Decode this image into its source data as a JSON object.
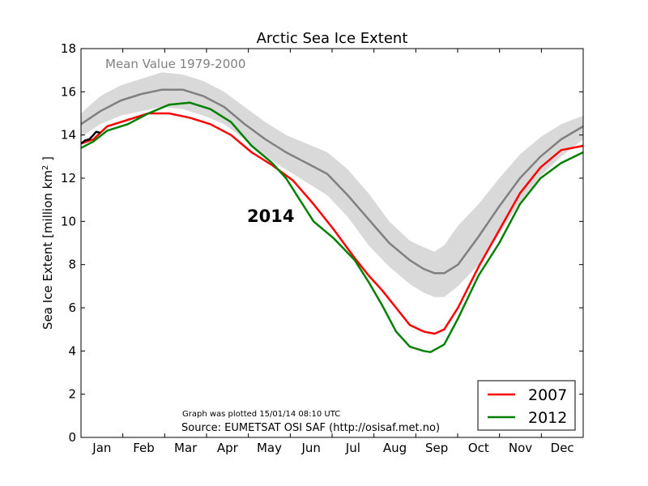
{
  "chart_data": {
    "type": "line",
    "title": "Arctic Sea Ice Extent",
    "ylabel": "Sea Ice Extent [million km",
    "ylabel_sup": "2",
    "ylabel_end": " ]",
    "xlabel": "",
    "ylim": [
      0,
      18
    ],
    "xlim": [
      1,
      366
    ],
    "grid": false,
    "legend_position": "lower right",
    "months": [
      "Jan",
      "Feb",
      "Mar",
      "Apr",
      "May",
      "Jun",
      "Jul",
      "Aug",
      "Sep",
      "Oct",
      "Nov",
      "Dec"
    ],
    "yticks": [
      "0",
      "2",
      "4",
      "6",
      "8",
      "10",
      "12",
      "14",
      "16",
      "18"
    ],
    "mean_label": "Mean Value 1979-2000",
    "year_label": "2014",
    "plotted_note": "Graph was plotted 15/01/14 08:10 UTC",
    "source_note": "Source: EUMETSAT OSI SAF (http://osisaf.met.no)",
    "mean": {
      "color": "#808080",
      "x": [
        1,
        15,
        30,
        45,
        60,
        75,
        90,
        105,
        120,
        135,
        150,
        165,
        180,
        195,
        210,
        225,
        240,
        250,
        258,
        265,
        275,
        290,
        305,
        320,
        335,
        350,
        366
      ],
      "y": [
        14.5,
        15.1,
        15.6,
        15.9,
        16.1,
        16.1,
        15.8,
        15.3,
        14.5,
        13.8,
        13.2,
        12.7,
        12.2,
        11.2,
        10.1,
        9.0,
        8.2,
        7.8,
        7.6,
        7.6,
        8.0,
        9.3,
        10.7,
        12.0,
        13.0,
        13.8,
        14.4
      ]
    },
    "band": {
      "color": "#d9d9d9",
      "x": [
        1,
        15,
        30,
        45,
        60,
        75,
        90,
        105,
        120,
        135,
        150,
        165,
        180,
        195,
        210,
        225,
        240,
        250,
        258,
        265,
        275,
        290,
        305,
        320,
        335,
        350,
        366
      ],
      "upper": [
        15.0,
        15.8,
        16.3,
        16.6,
        16.9,
        16.8,
        16.5,
        16.0,
        15.3,
        14.6,
        14.0,
        13.6,
        13.2,
        12.4,
        11.3,
        10.0,
        9.1,
        8.8,
        8.6,
        8.9,
        9.8,
        10.8,
        12.0,
        13.1,
        13.9,
        14.5,
        14.9
      ],
      "lower": [
        13.9,
        14.5,
        14.9,
        15.1,
        15.3,
        15.2,
        14.9,
        14.5,
        13.8,
        13.0,
        12.4,
        11.8,
        11.2,
        10.2,
        8.9,
        7.9,
        7.1,
        6.7,
        6.5,
        6.5,
        7.0,
        8.0,
        9.4,
        10.9,
        12.1,
        13.0,
        13.8
      ]
    },
    "series": [
      {
        "name": "2007",
        "color": "#ff0000",
        "x": [
          1,
          10,
          20,
          35,
          50,
          65,
          80,
          95,
          110,
          125,
          140,
          155,
          170,
          185,
          200,
          210,
          220,
          230,
          240,
          250,
          258,
          265,
          275,
          290,
          305,
          320,
          335,
          350,
          366
        ],
        "y": [
          13.6,
          13.8,
          14.4,
          14.7,
          15.0,
          15.0,
          14.8,
          14.5,
          14.0,
          13.2,
          12.6,
          11.9,
          10.8,
          9.6,
          8.3,
          7.5,
          6.8,
          6.0,
          5.2,
          4.9,
          4.8,
          5.0,
          6.0,
          7.9,
          9.6,
          11.3,
          12.5,
          13.3,
          13.5
        ]
      },
      {
        "name": "2012",
        "color": "#008000",
        "x": [
          1,
          10,
          20,
          35,
          50,
          65,
          80,
          95,
          110,
          125,
          140,
          150,
          160,
          170,
          185,
          200,
          210,
          220,
          230,
          240,
          250,
          255,
          265,
          275,
          290,
          305,
          320,
          335,
          350,
          366
        ],
        "y": [
          13.4,
          13.7,
          14.2,
          14.5,
          15.0,
          15.4,
          15.5,
          15.2,
          14.6,
          13.5,
          12.7,
          12.0,
          11.0,
          10.0,
          9.2,
          8.2,
          7.2,
          6.1,
          4.9,
          4.2,
          4.0,
          3.95,
          4.3,
          5.5,
          7.5,
          9.0,
          10.8,
          12.0,
          12.7,
          13.2
        ]
      },
      {
        "name": "2014",
        "color": "#000000",
        "x": [
          1,
          4,
          7,
          10,
          12,
          15
        ],
        "y": [
          13.6,
          13.75,
          13.8,
          14.0,
          14.15,
          14.1
        ]
      }
    ]
  }
}
